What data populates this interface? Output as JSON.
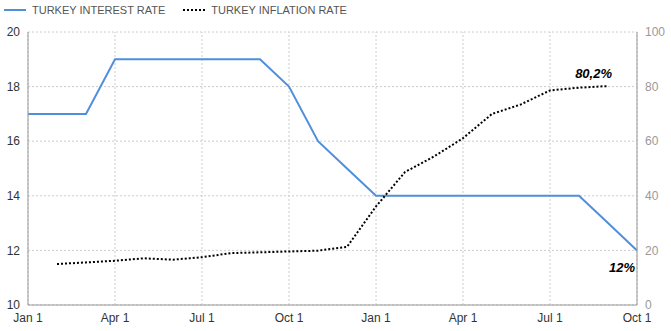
{
  "chart_data": {
    "type": "line",
    "legend": "top-left",
    "grid": true,
    "categories": [
      "Jan 1",
      null,
      null,
      "Apr 1",
      null,
      null,
      "Jul 1",
      null,
      null,
      "Oct 1",
      null,
      null,
      "Jan 1",
      null,
      null,
      "Apr 1",
      null,
      null,
      "Jul 1",
      null,
      null,
      "Oct 1"
    ],
    "ylim": [
      10,
      20
    ],
    "yticks": [
      10,
      12,
      14,
      16,
      18,
      20
    ],
    "y2lim": [
      0,
      100
    ],
    "y2ticks": [
      0,
      20,
      40,
      60,
      80,
      100
    ],
    "series": [
      {
        "name": "TURKEY INTEREST RATE",
        "color": "#4f8fdc",
        "line_style": "solid",
        "values": [
          17,
          17,
          17,
          19,
          19,
          19,
          19,
          19,
          19,
          18,
          16,
          15,
          14,
          14,
          14,
          14,
          14,
          14,
          14,
          14,
          13,
          12
        ]
      },
      {
        "name": "TURKEY INFLATION RATE",
        "color": "#000000",
        "line_style": "dotted",
        "axis": "y2",
        "values": [
          null,
          15.0,
          15.6,
          16.2,
          17.1,
          16.6,
          17.5,
          19.0,
          19.3,
          19.6,
          19.9,
          21.3,
          36.1,
          48.7,
          54.4,
          61.1,
          70.0,
          73.5,
          78.6,
          79.6,
          80.2,
          null
        ]
      }
    ],
    "annotations": [
      {
        "text": "80,2%",
        "series": "TURKEY INFLATION RATE"
      },
      {
        "text": "12%",
        "series": "TURKEY INTEREST RATE"
      }
    ]
  }
}
